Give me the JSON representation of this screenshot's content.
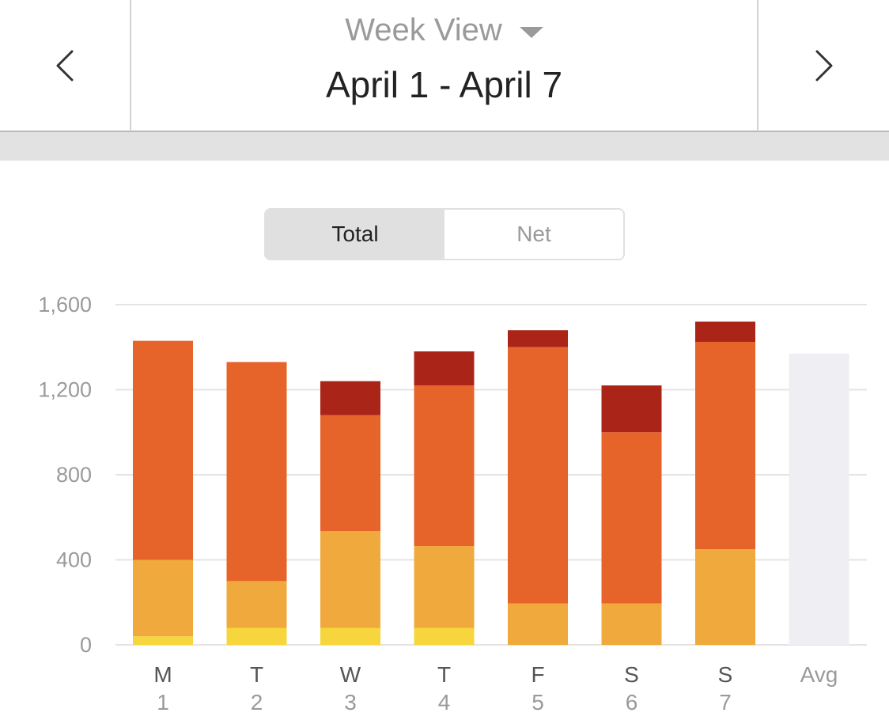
{
  "header": {
    "view_label": "Week View",
    "date_range": "April 1 - April 7"
  },
  "toggle": {
    "options": [
      "Total",
      "Net"
    ],
    "selected": "Total"
  },
  "colors": {
    "bottom": "#f6d63c",
    "second": "#f0a93c",
    "third": "#e6632a",
    "top": "#ab2418",
    "avg": "#efeff3",
    "grid": "#e4e4e4",
    "axis_text": "#9a9a9a"
  },
  "chart_data": {
    "type": "bar",
    "stacked": true,
    "y_ticks": [
      "1,600",
      "1,200",
      "800",
      "400",
      "0"
    ],
    "y_tick_values": [
      1600,
      1200,
      800,
      400,
      0
    ],
    "ylim": [
      0,
      1600
    ],
    "grid": true,
    "categories": [
      {
        "day": "M",
        "date": "1"
      },
      {
        "day": "T",
        "date": "2"
      },
      {
        "day": "W",
        "date": "3"
      },
      {
        "day": "T",
        "date": "4"
      },
      {
        "day": "F",
        "date": "5"
      },
      {
        "day": "S",
        "date": "6"
      },
      {
        "day": "S",
        "date": "7"
      }
    ],
    "series": [
      {
        "color_key": "bottom",
        "values": [
          40,
          80,
          80,
          80,
          0,
          0,
          0
        ]
      },
      {
        "color_key": "second",
        "values": [
          360,
          220,
          455,
          385,
          195,
          195,
          450
        ]
      },
      {
        "color_key": "third",
        "values": [
          1030,
          1030,
          545,
          755,
          1205,
          805,
          975
        ]
      },
      {
        "color_key": "top",
        "values": [
          0,
          0,
          160,
          160,
          80,
          220,
          95
        ]
      }
    ],
    "average": {
      "label": "Avg",
      "value": 1370
    }
  }
}
